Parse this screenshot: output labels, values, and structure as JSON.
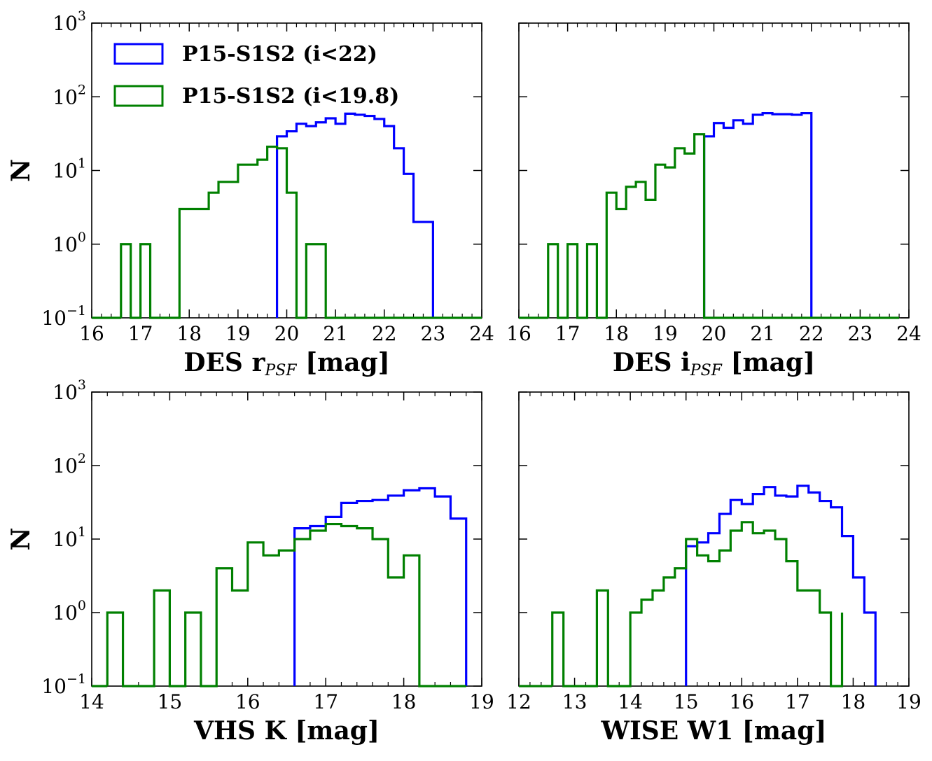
{
  "figure": {
    "legend": {
      "placement": "top-left of first panel",
      "entries": [
        {
          "label": "P15-S1S2 (i<22)",
          "color": "#0000ff"
        },
        {
          "label": "P15-S1S2 (i<19.8)",
          "color": "#008000"
        }
      ]
    }
  },
  "chart_data": [
    {
      "type": "histogram",
      "panel": "top-left",
      "xlabel": "DES r",
      "xlabel_sub": "PSF",
      "xlabel_unit": " [mag]",
      "ylabel": "N",
      "xlim": [
        16,
        24
      ],
      "ylim": [
        0.1,
        1000
      ],
      "yscale": "log",
      "xticks": [
        16,
        17,
        18,
        19,
        20,
        21,
        22,
        23,
        24
      ],
      "ytick_exponents": [
        -1,
        0,
        1,
        2,
        3
      ],
      "show_y_tick_labels": true,
      "series": [
        {
          "color": "#0000ff",
          "edges": [
            19.8,
            20.0,
            20.2,
            20.4,
            20.6,
            20.8,
            21.0,
            21.2,
            21.4,
            21.6,
            21.8,
            22.0,
            22.2,
            22.4,
            22.6,
            22.8,
            23.0
          ],
          "counts": [
            29,
            34,
            43,
            40,
            45,
            51,
            43,
            59,
            57,
            55,
            50,
            40,
            20,
            9,
            2,
            2
          ],
          "baseline_end": null
        },
        {
          "color": "#008000",
          "edges": [
            16.6,
            16.8,
            17.0,
            17.2,
            17.4,
            17.6,
            17.8,
            18.0,
            18.2,
            18.4,
            18.6,
            18.8,
            19.0,
            19.2,
            19.4,
            19.6,
            19.8,
            20.0,
            20.2,
            20.4,
            20.6,
            20.8
          ],
          "counts": [
            1,
            0.1,
            1,
            0.1,
            0.1,
            0.1,
            3,
            3,
            3,
            5,
            7,
            7,
            12,
            12,
            14,
            21,
            20,
            5,
            0.1,
            1,
            1
          ],
          "baseline_end": 24
        }
      ]
    },
    {
      "type": "histogram",
      "panel": "top-right",
      "xlabel": "DES i",
      "xlabel_sub": "PSF",
      "xlabel_unit": " [mag]",
      "ylabel": "",
      "xlim": [
        16,
        24
      ],
      "ylim": [
        0.1,
        1000
      ],
      "yscale": "log",
      "xticks": [
        16,
        17,
        18,
        19,
        20,
        21,
        22,
        23,
        24
      ],
      "ytick_exponents": [
        -1,
        0,
        1,
        2,
        3
      ],
      "show_y_tick_labels": false,
      "series": [
        {
          "color": "#0000ff",
          "edges": [
            19.8,
            20.0,
            20.2,
            20.4,
            20.6,
            20.8,
            21.0,
            21.2,
            21.4,
            21.6,
            21.8,
            22.0
          ],
          "counts": [
            29,
            44,
            38,
            48,
            43,
            57,
            60,
            58,
            58,
            57,
            60
          ],
          "baseline_end": null
        },
        {
          "color": "#008000",
          "edges": [
            16.6,
            16.8,
            17.0,
            17.2,
            17.4,
            17.6,
            17.8,
            18.0,
            18.2,
            18.4,
            18.6,
            18.8,
            19.0,
            19.2,
            19.4,
            19.6,
            19.8
          ],
          "counts": [
            1,
            0.1,
            1,
            0.1,
            1,
            0.1,
            5,
            3,
            6,
            7,
            4,
            12,
            11,
            20,
            17,
            31
          ],
          "baseline_end": 23.8
        }
      ]
    },
    {
      "type": "histogram",
      "panel": "bottom-left",
      "xlabel": "VHS K [mag]",
      "xlabel_sub": "",
      "xlabel_unit": "",
      "ylabel": "N",
      "xlim": [
        14,
        19
      ],
      "ylim": [
        0.1,
        1000
      ],
      "yscale": "log",
      "xticks": [
        14,
        15,
        16,
        17,
        18,
        19
      ],
      "ytick_exponents": [
        -1,
        0,
        1,
        2,
        3
      ],
      "show_y_tick_labels": true,
      "series": [
        {
          "color": "#0000ff",
          "edges": [
            16.6,
            16.8,
            17.0,
            17.2,
            17.4,
            17.6,
            17.8,
            18.0,
            18.2,
            18.4,
            18.6,
            18.8
          ],
          "counts": [
            14,
            15,
            20,
            31,
            33,
            34,
            39,
            46,
            49,
            38,
            19
          ],
          "baseline_end": null
        },
        {
          "color": "#008000",
          "edges": [
            14.2,
            14.4,
            14.6,
            14.8,
            15.0,
            15.2,
            15.4,
            15.6,
            15.8,
            16.0,
            16.2,
            16.4,
            16.6,
            16.8,
            17.0,
            17.2,
            17.4,
            17.6,
            17.8,
            18.0,
            18.2
          ],
          "counts": [
            1,
            0.1,
            0.1,
            2,
            0.1,
            1,
            0.1,
            4,
            2,
            9,
            6,
            7,
            10,
            13,
            16,
            15,
            14,
            10,
            3,
            6
          ],
          "baseline_end": 18.8
        }
      ]
    },
    {
      "type": "histogram",
      "panel": "bottom-right",
      "xlabel": "WISE W1 [mag]",
      "xlabel_sub": "",
      "xlabel_unit": "",
      "ylabel": "",
      "xlim": [
        12,
        19
      ],
      "ylim": [
        0.1,
        1000
      ],
      "yscale": "log",
      "xticks": [
        12,
        13,
        14,
        15,
        16,
        17,
        18,
        19
      ],
      "ytick_exponents": [
        -1,
        0,
        1,
        2,
        3
      ],
      "show_y_tick_labels": false,
      "series": [
        {
          "color": "#0000ff",
          "edges": [
            15.0,
            15.2,
            15.4,
            15.6,
            15.8,
            16.0,
            16.2,
            16.4,
            16.6,
            16.8,
            17.0,
            17.2,
            17.4,
            17.6,
            17.8,
            18.0,
            18.2,
            18.4
          ],
          "counts": [
            8,
            9,
            12,
            22,
            34,
            30,
            41,
            51,
            39,
            38,
            53,
            43,
            33,
            27,
            11,
            3,
            1
          ],
          "baseline_end": null
        },
        {
          "color": "#008000",
          "edges": [
            12.6,
            12.8,
            13.0,
            13.2,
            13.4,
            13.6,
            13.8,
            14.0,
            14.2,
            14.4,
            14.6,
            14.8,
            15.0,
            15.2,
            15.4,
            15.6,
            15.8,
            16.0,
            16.2,
            16.4,
            16.6,
            16.8,
            17.0,
            17.2,
            17.4,
            17.6,
            17.8
          ],
          "counts": [
            1,
            0.1,
            0.1,
            0.1,
            2,
            0.1,
            0.1,
            1,
            1.5,
            2,
            3,
            4,
            10,
            6,
            5,
            7,
            13,
            17,
            12,
            13,
            10,
            5,
            2,
            2,
            1,
            0.1,
            1
          ],
          "baseline_end": 18.6
        }
      ]
    }
  ]
}
